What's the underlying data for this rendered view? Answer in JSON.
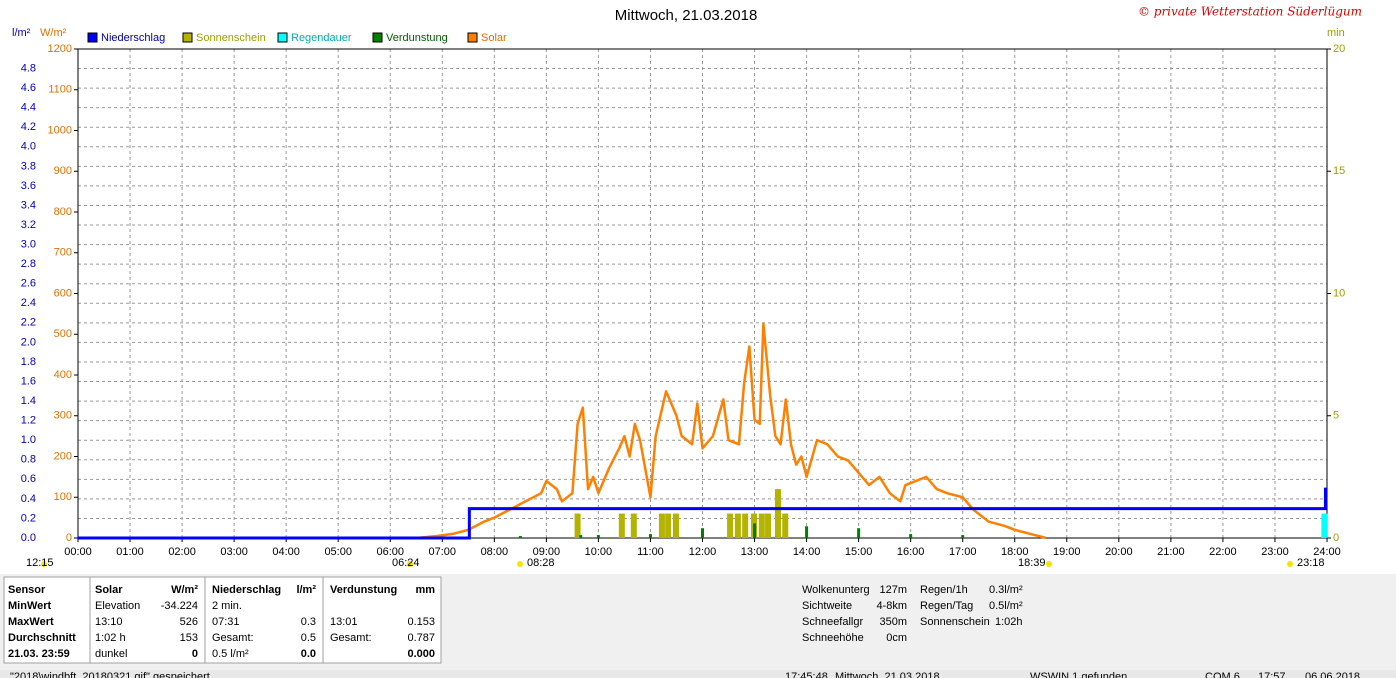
{
  "chart_data": {
    "type": "line",
    "title": "Mittwoch, 21.03.2018",
    "credit": "© private Wetterstation Süderlügum",
    "ylabel": "W/m²",
    "y2label": "l/m²",
    "y3label": "min",
    "xlim": [
      0,
      24
    ],
    "xticks": [
      {
        "value": 0,
        "label": "00:00"
      },
      {
        "value": 1,
        "label": "01:00"
      },
      {
        "value": 2,
        "label": "02:00"
      },
      {
        "value": 3,
        "label": "03:00"
      },
      {
        "value": 4,
        "label": "04:00"
      },
      {
        "value": 5,
        "label": "05:00"
      },
      {
        "value": 6,
        "label": "06:00"
      },
      {
        "value": 7,
        "label": "07:00"
      },
      {
        "value": 8,
        "label": "08:00"
      },
      {
        "value": 9,
        "label": "09:00"
      },
      {
        "value": 10,
        "label": "10:00"
      },
      {
        "value": 11,
        "label": "11:00"
      },
      {
        "value": 12,
        "label": "12:00"
      },
      {
        "value": 13,
        "label": "13:00"
      },
      {
        "value": 14,
        "label": "14:00"
      },
      {
        "value": 15,
        "label": "15:00"
      },
      {
        "value": 16,
        "label": "16:00"
      },
      {
        "value": 17,
        "label": "17:00"
      },
      {
        "value": 18,
        "label": "18:00"
      },
      {
        "value": 19,
        "label": "19:00"
      },
      {
        "value": 20,
        "label": "20:00"
      },
      {
        "value": 21,
        "label": "21:00"
      },
      {
        "value": 22,
        "label": "22:00"
      },
      {
        "value": 23,
        "label": "23:00"
      },
      {
        "value": 24,
        "label": "24:00"
      }
    ],
    "ylim": [
      0,
      1200
    ],
    "yticks": [
      0,
      100,
      200,
      300,
      400,
      500,
      600,
      700,
      800,
      900,
      1000,
      1100,
      1200
    ],
    "y2lim": [
      0,
      5
    ],
    "y2ticks": [
      {
        "value": 0,
        "label": "0.0"
      },
      0.2,
      0.4,
      0.6,
      0.8,
      {
        "value": 1,
        "label": "1.0"
      },
      1.2,
      1.4,
      1.6,
      1.8,
      {
        "value": 2,
        "label": "2.0"
      },
      2.2,
      2.4,
      2.6,
      2.8,
      {
        "value": 3,
        "label": "3.0"
      },
      3.2,
      3.4,
      3.6,
      3.8,
      {
        "value": 4,
        "label": "4.0"
      },
      4.2,
      4.4,
      4.6,
      4.8
    ],
    "y3lim": [
      0,
      20
    ],
    "y3ticks": [
      0,
      5,
      10,
      15,
      20
    ],
    "grid": true,
    "series": [
      {
        "name": "Niederschlag",
        "type": "step",
        "axis": "y2",
        "color": "#0000ff",
        "x": [
          0,
          7.52,
          23.97
        ],
        "values": [
          0,
          0.3,
          0.5
        ]
      },
      {
        "name": "Sonnenschein",
        "type": "bar",
        "axis": "y3",
        "color": "#b4b400",
        "x": [
          9.6,
          10.45,
          10.68,
          11.22,
          11.34,
          11.49,
          12.53,
          12.68,
          12.82,
          12.99,
          13.14,
          13.26,
          13.45,
          13.59
        ],
        "values": [
          1,
          1,
          1,
          1,
          1,
          1,
          1,
          1,
          1,
          1,
          1,
          1,
          2,
          1
        ]
      },
      {
        "name": "Regendauer",
        "type": "bar",
        "axis": "y3",
        "color": "#00ffff",
        "x": [
          23.95
        ],
        "values": [
          1
        ]
      },
      {
        "name": "Verdunstung",
        "type": "bar",
        "axis": "y2",
        "color": "#008000",
        "x": [
          8.5,
          9.66,
          10.0,
          11.0,
          12.0,
          13.0,
          14.0,
          15.0,
          16.0,
          17.0
        ],
        "values": [
          0.02,
          0.03,
          0.03,
          0.04,
          0.1,
          0.15,
          0.12,
          0.1,
          0.04,
          0.03
        ]
      },
      {
        "name": "Solar",
        "type": "line",
        "axis": "y",
        "color": "#ff8000",
        "x": [
          6.5,
          6.9,
          7.2,
          7.5,
          7.8,
          8.0,
          8.3,
          8.6,
          8.9,
          9.0,
          9.2,
          9.3,
          9.5,
          9.6,
          9.7,
          9.8,
          9.9,
          10.0,
          10.2,
          10.4,
          10.5,
          10.6,
          10.7,
          10.8,
          11.0,
          11.1,
          11.3,
          11.5,
          11.6,
          11.8,
          11.9,
          12.0,
          12.2,
          12.4,
          12.5,
          12.7,
          12.8,
          12.9,
          13.0,
          13.1,
          13.17,
          13.3,
          13.4,
          13.5,
          13.6,
          13.7,
          13.8,
          13.9,
          14.0,
          14.2,
          14.4,
          14.6,
          14.8,
          15.0,
          15.2,
          15.4,
          15.6,
          15.8,
          15.9,
          16.1,
          16.3,
          16.5,
          16.7,
          17.0,
          17.2,
          17.5,
          17.8,
          18.0,
          18.3,
          18.6
        ],
        "values": [
          0,
          5,
          10,
          20,
          40,
          50,
          70,
          90,
          110,
          140,
          120,
          90,
          110,
          280,
          320,
          120,
          150,
          110,
          170,
          220,
          250,
          200,
          280,
          240,
          100,
          250,
          360,
          300,
          250,
          230,
          330,
          220,
          250,
          340,
          240,
          230,
          380,
          470,
          290,
          280,
          526,
          350,
          250,
          230,
          340,
          230,
          180,
          200,
          150,
          240,
          230,
          200,
          190,
          160,
          130,
          150,
          110,
          90,
          130,
          140,
          150,
          120,
          110,
          100,
          70,
          40,
          30,
          20,
          10,
          0
        ]
      }
    ],
    "markers": [
      "12:15",
      "06:24",
      "08:28",
      "18:39",
      "23:18"
    ]
  },
  "panel": {
    "rowlabels": [
      "Sensor",
      "MinWert",
      "MaxWert",
      "Durchschnitt",
      "21.03. 23:59"
    ],
    "solar": {
      "title": "Solar",
      "unit": "W/m²",
      "rows": [
        [
          "Elevation",
          "-34.224"
        ],
        [
          "13:10",
          "526"
        ],
        [
          "1:02 h",
          "153"
        ],
        [
          "dunkel",
          "0"
        ]
      ]
    },
    "niederschlag": {
      "title": "Niederschlag",
      "unit": "l/m²",
      "rows": [
        [
          "2 min."
        ],
        [
          "07:31",
          "0.3"
        ],
        [
          "Gesamt:",
          "0.5"
        ],
        [
          "0.5 l/m²",
          "0.0"
        ]
      ]
    },
    "verdunstung": {
      "title": "Verdunstung",
      "unit": "mm",
      "rows": [
        [
          "13:01",
          "0.153"
        ],
        [
          "Gesamt:",
          "0.787"
        ],
        [
          "0.000"
        ]
      ]
    },
    "info1": [
      [
        "Wolkenunterg",
        "127m"
      ],
      [
        "Sichtweite",
        "4-8km"
      ],
      [
        "Schneefallgr",
        "350m"
      ],
      [
        "Schneehöhe",
        "0cm"
      ]
    ],
    "info2": [
      [
        "Regen/1h",
        "0.3l/m²"
      ],
      [
        "Regen/Tag",
        "0.5l/m²"
      ],
      [
        "Sonnenschein",
        "1:02h"
      ]
    ]
  },
  "status": [
    "\"2018\\windbft_20180321.gif\" gespeichert",
    "17:45:48",
    "Mittwoch, 21.03.2018",
    "WSWIN 1 gefunden",
    "COM 6",
    "17:57",
    "06.06.2018"
  ]
}
